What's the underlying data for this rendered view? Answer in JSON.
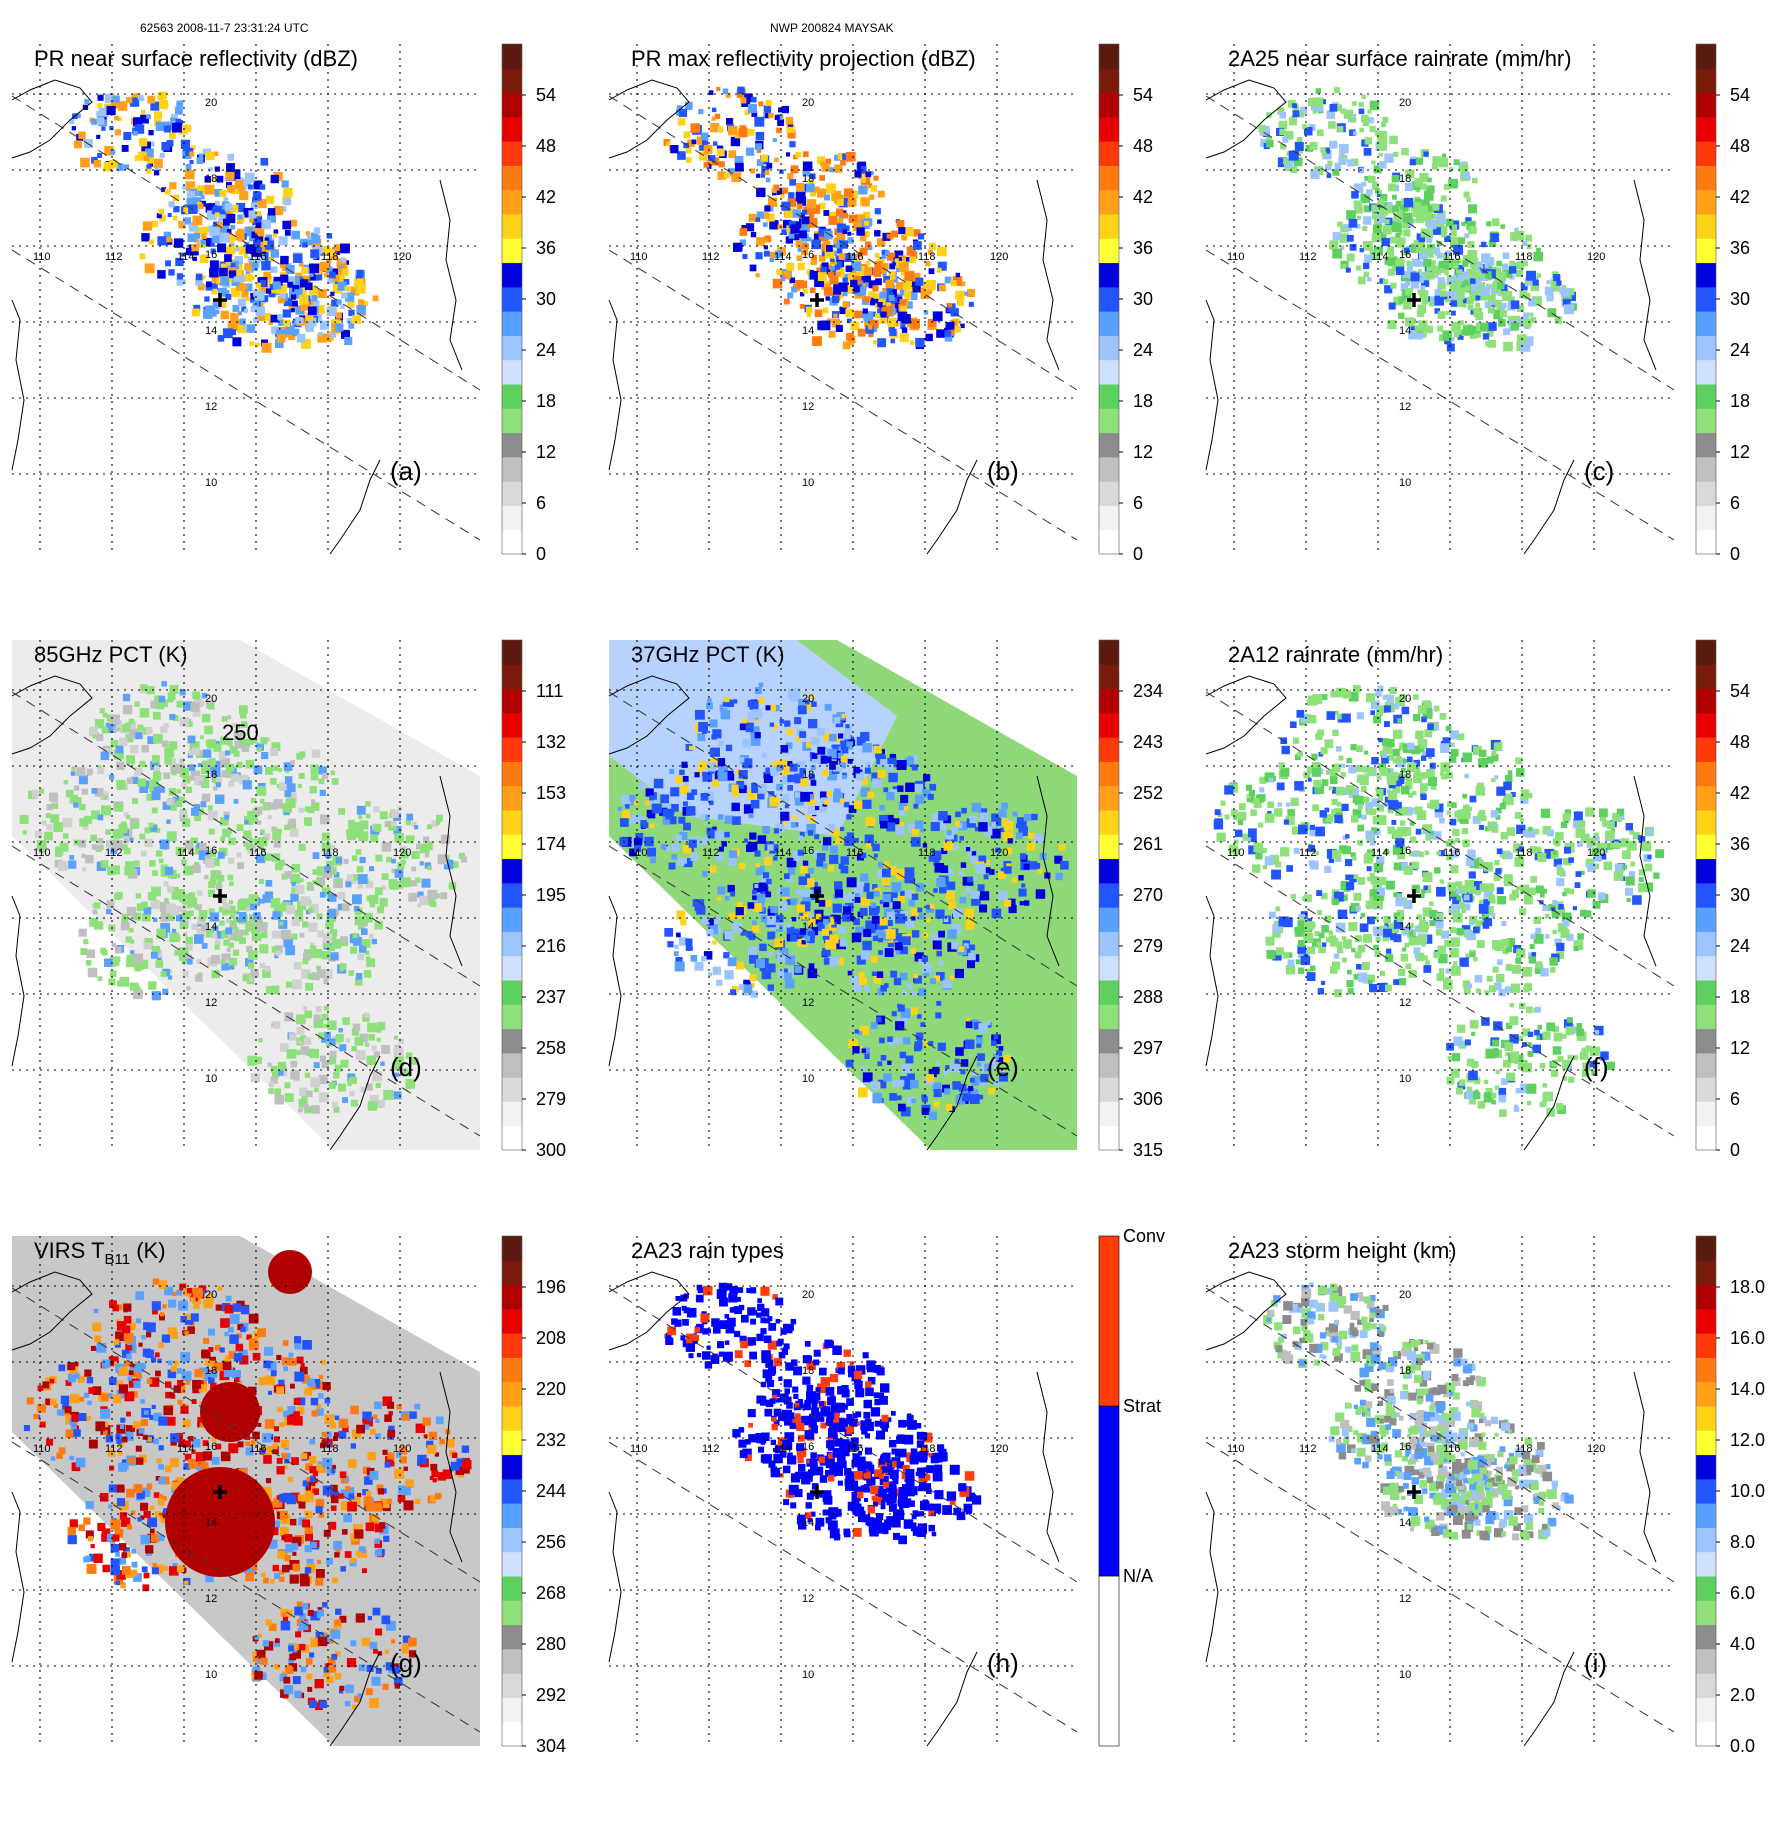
{
  "header": {
    "left": "62563 2008-11-7 23:31:24 UTC",
    "center": "NWP 200824 MAYSAK"
  },
  "grid": {
    "lon_labels": [
      "110",
      "112",
      "114",
      "116",
      "118",
      "120"
    ],
    "lat_labels": [
      "20",
      "18",
      "16",
      "14",
      "12",
      "10"
    ]
  },
  "colors": {
    "ramp": [
      "#ffffff",
      "#f2f2f2",
      "#d9d9d9",
      "#bfbfbf",
      "#8c8c8c",
      "#8ee07a",
      "#5dd05f",
      "#cfe0ff",
      "#9cc4ff",
      "#5aa0ff",
      "#2255ff",
      "#0000dd",
      "#ffff33",
      "#ffd21a",
      "#ffa018",
      "#ff7a10",
      "#ff3a0a",
      "#e80000",
      "#b00000",
      "#7a1a0a",
      "#5a1a10"
    ],
    "rain_types": [
      "#ffffff",
      "#0000ff",
      "#ff3c0a"
    ]
  },
  "chart_data": [
    {
      "id": "a",
      "type": "heatmap",
      "title": "PR near surface reflectivity (dBZ)",
      "panel_label": "(a)",
      "colorbar": {
        "ticks": [
          "0",
          "6",
          "12",
          "18",
          "24",
          "30",
          "36",
          "42",
          "48",
          "54"
        ],
        "kind": "ramp"
      }
    },
    {
      "id": "b",
      "type": "heatmap",
      "title": "PR max reflectivity projection (dBZ)",
      "panel_label": "(b)",
      "colorbar": {
        "ticks": [
          "0",
          "6",
          "12",
          "18",
          "24",
          "30",
          "36",
          "42",
          "48",
          "54"
        ],
        "kind": "ramp"
      }
    },
    {
      "id": "c",
      "type": "heatmap",
      "title": "2A25 near surface rainrate (mm/hr)",
      "panel_label": "(c)",
      "colorbar": {
        "ticks": [
          "0",
          "6",
          "12",
          "18",
          "24",
          "30",
          "36",
          "42",
          "48",
          "54"
        ],
        "kind": "ramp"
      }
    },
    {
      "id": "d",
      "type": "heatmap",
      "title": "85GHz PCT (K)",
      "panel_label": "(d)",
      "contour_label": "250",
      "colorbar": {
        "ticks": [
          "300",
          "279",
          "258",
          "237",
          "216",
          "195",
          "174",
          "153",
          "132",
          "111"
        ],
        "kind": "ramp"
      }
    },
    {
      "id": "e",
      "type": "heatmap",
      "title": "37GHz PCT (K)",
      "panel_label": "(e)",
      "colorbar": {
        "ticks": [
          "315",
          "306",
          "297",
          "288",
          "279",
          "270",
          "261",
          "252",
          "243",
          "234"
        ],
        "kind": "ramp"
      }
    },
    {
      "id": "f",
      "type": "heatmap",
      "title": "2A12 rainrate (mm/hr)",
      "panel_label": "(f)",
      "colorbar": {
        "ticks": [
          "0",
          "6",
          "12",
          "18",
          "24",
          "30",
          "36",
          "42",
          "48",
          "54"
        ],
        "kind": "ramp"
      }
    },
    {
      "id": "g",
      "type": "heatmap",
      "title": "VIRS T",
      "title_sub": "B11",
      "title_end": " (K)",
      "panel_label": "(g)",
      "colorbar": {
        "ticks": [
          "304",
          "292",
          "280",
          "268",
          "256",
          "244",
          "232",
          "220",
          "208",
          "196"
        ],
        "kind": "ramp"
      }
    },
    {
      "id": "h",
      "type": "heatmap",
      "title": "2A23 rain types",
      "panel_label": "(h)",
      "colorbar": {
        "ticks": [
          "N/A",
          "Strat",
          "Conv"
        ],
        "kind": "categorical"
      }
    },
    {
      "id": "i",
      "type": "heatmap",
      "title": "2A23 storm height (km)",
      "panel_label": "(i)",
      "colorbar": {
        "ticks": [
          "0.0",
          "2.0",
          "4.0",
          "6.0",
          "8.0",
          "10.0",
          "12.0",
          "14.0",
          "16.0",
          "18.0"
        ],
        "kind": "ramp"
      }
    }
  ]
}
